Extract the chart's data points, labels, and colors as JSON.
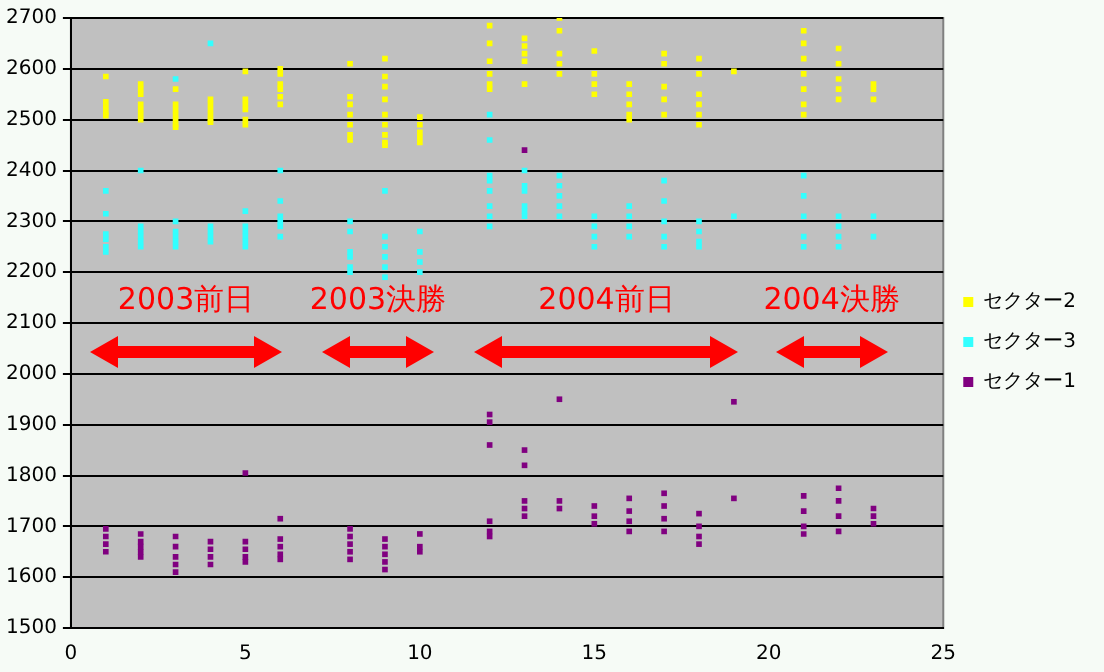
{
  "chart_data": {
    "type": "scatter",
    "xlim": [
      0,
      25
    ],
    "xticks": [
      0,
      5,
      10,
      15,
      20,
      25
    ],
    "ylim": [
      1500,
      2700
    ],
    "yticks": [
      1500,
      1600,
      1700,
      1800,
      1900,
      2000,
      2100,
      2200,
      2300,
      2400,
      2500,
      2600,
      2700
    ],
    "grid": "y",
    "legend": "right",
    "marker": "square",
    "series": [
      {
        "name": "セクター2",
        "color": "#ffff00",
        "x": [
          1,
          1,
          1,
          1,
          1,
          2,
          2,
          2,
          2,
          2,
          2,
          2,
          3,
          3,
          3,
          3,
          3,
          3,
          3,
          4,
          4,
          4,
          4,
          4,
          4,
          5,
          5,
          5,
          5,
          5,
          5,
          6,
          6,
          6,
          6,
          6,
          6,
          8,
          8,
          8,
          8,
          8,
          8,
          8,
          9,
          9,
          9,
          9,
          9,
          9,
          9,
          9,
          9,
          10,
          10,
          10,
          10,
          10,
          12,
          12,
          12,
          12,
          12,
          12,
          13,
          13,
          13,
          13,
          13,
          14,
          14,
          14,
          14,
          14,
          15,
          15,
          15,
          15,
          16,
          16,
          16,
          16,
          16,
          17,
          17,
          17,
          17,
          17,
          18,
          18,
          18,
          18,
          18,
          18,
          19,
          21,
          21,
          21,
          21,
          21,
          21,
          21,
          22,
          22,
          22,
          22,
          22,
          23,
          23,
          23
        ],
        "values": [
          2585,
          2535,
          2525,
          2515,
          2508,
          2570,
          2560,
          2550,
          2530,
          2520,
          2510,
          2500,
          2560,
          2530,
          2520,
          2510,
          2500,
          2490,
          2485,
          2540,
          2530,
          2520,
          2510,
          2500,
          2495,
          2595,
          2540,
          2530,
          2520,
          2500,
          2490,
          2600,
          2590,
          2570,
          2560,
          2545,
          2530,
          2610,
          2545,
          2530,
          2510,
          2490,
          2470,
          2460,
          2620,
          2585,
          2565,
          2540,
          2510,
          2490,
          2470,
          2455,
          2450,
          2505,
          2490,
          2475,
          2465,
          2455,
          2685,
          2650,
          2615,
          2590,
          2570,
          2560,
          2660,
          2645,
          2630,
          2615,
          2570,
          2700,
          2675,
          2630,
          2610,
          2590,
          2635,
          2590,
          2570,
          2550,
          2570,
          2550,
          2530,
          2510,
          2500,
          2630,
          2610,
          2565,
          2540,
          2510,
          2620,
          2590,
          2550,
          2530,
          2510,
          2490,
          2595,
          2675,
          2650,
          2620,
          2590,
          2560,
          2530,
          2510,
          2640,
          2610,
          2580,
          2560,
          2540,
          2570,
          2560,
          2540
        ]
      },
      {
        "name": "セクター3",
        "color": "#33ffff",
        "x": [
          1,
          1,
          1,
          1,
          1,
          1,
          2,
          2,
          2,
          2,
          2,
          2,
          3,
          3,
          3,
          3,
          3,
          3,
          4,
          4,
          4,
          4,
          4,
          5,
          5,
          5,
          5,
          5,
          5,
          6,
          6,
          6,
          6,
          6,
          6,
          8,
          8,
          8,
          8,
          8,
          8,
          9,
          9,
          9,
          9,
          9,
          9,
          10,
          10,
          10,
          10,
          12,
          12,
          12,
          12,
          12,
          12,
          12,
          12,
          13,
          13,
          13,
          13,
          13,
          13,
          14,
          14,
          14,
          14,
          14,
          15,
          15,
          15,
          15,
          16,
          16,
          16,
          16,
          17,
          17,
          17,
          17,
          17,
          18,
          18,
          18,
          18,
          19,
          21,
          21,
          21,
          21,
          21,
          22,
          22,
          22,
          22,
          23,
          23
        ],
        "values": [
          2360,
          2315,
          2275,
          2265,
          2250,
          2240,
          2400,
          2290,
          2280,
          2270,
          2260,
          2250,
          2580,
          2300,
          2280,
          2270,
          2260,
          2250,
          2650,
          2290,
          2280,
          2270,
          2260,
          2320,
          2290,
          2280,
          2270,
          2260,
          2250,
          2400,
          2340,
          2310,
          2300,
          2290,
          2270,
          2300,
          2280,
          2240,
          2230,
          2210,
          2200,
          2360,
          2270,
          2250,
          2230,
          2210,
          2190,
          2280,
          2240,
          2220,
          2200,
          2510,
          2460,
          2390,
          2380,
          2360,
          2330,
          2310,
          2290,
          2400,
          2370,
          2360,
          2330,
          2320,
          2310,
          2390,
          2370,
          2350,
          2330,
          2310,
          2310,
          2290,
          2270,
          2250,
          2330,
          2310,
          2290,
          2270,
          2380,
          2340,
          2300,
          2270,
          2250,
          2300,
          2280,
          2260,
          2250,
          2310,
          2390,
          2350,
          2310,
          2270,
          2250,
          2310,
          2290,
          2270,
          2250,
          2310,
          2270
        ]
      },
      {
        "name": "セクター1",
        "color": "#800080",
        "x": [
          1,
          1,
          1,
          1,
          2,
          2,
          2,
          2,
          2,
          3,
          3,
          3,
          3,
          3,
          4,
          4,
          4,
          4,
          5,
          5,
          5,
          5,
          5,
          6,
          6,
          6,
          6,
          6,
          8,
          8,
          8,
          8,
          8,
          9,
          9,
          9,
          9,
          9,
          10,
          10,
          10,
          12,
          12,
          12,
          12,
          12,
          12,
          13,
          13,
          13,
          13,
          13,
          13,
          14,
          14,
          14,
          15,
          15,
          15,
          16,
          16,
          16,
          16,
          17,
          17,
          17,
          17,
          18,
          18,
          18,
          18,
          19,
          19,
          21,
          21,
          21,
          21,
          22,
          22,
          22,
          22,
          23,
          23,
          23
        ],
        "values": [
          1695,
          1680,
          1665,
          1650,
          1685,
          1670,
          1660,
          1650,
          1640,
          1680,
          1660,
          1640,
          1625,
          1610,
          1670,
          1655,
          1640,
          1625,
          1805,
          1670,
          1655,
          1640,
          1630,
          1715,
          1675,
          1660,
          1645,
          1635,
          1695,
          1680,
          1665,
          1650,
          1635,
          1675,
          1660,
          1645,
          1630,
          1615,
          1685,
          1660,
          1650,
          1920,
          1905,
          1860,
          1710,
          1690,
          1680,
          2440,
          1850,
          1820,
          1750,
          1735,
          1720,
          1950,
          1750,
          1735,
          1740,
          1720,
          1705,
          1755,
          1730,
          1710,
          1690,
          1765,
          1740,
          1715,
          1690,
          1725,
          1700,
          1680,
          1665,
          1945,
          1755,
          1760,
          1730,
          1700,
          1685,
          1775,
          1750,
          1720,
          1690,
          1735,
          1720,
          1705
        ]
      }
    ],
    "annotations": [
      "2003前日",
      "2003決勝",
      "2004前日",
      "2004決勝"
    ]
  }
}
